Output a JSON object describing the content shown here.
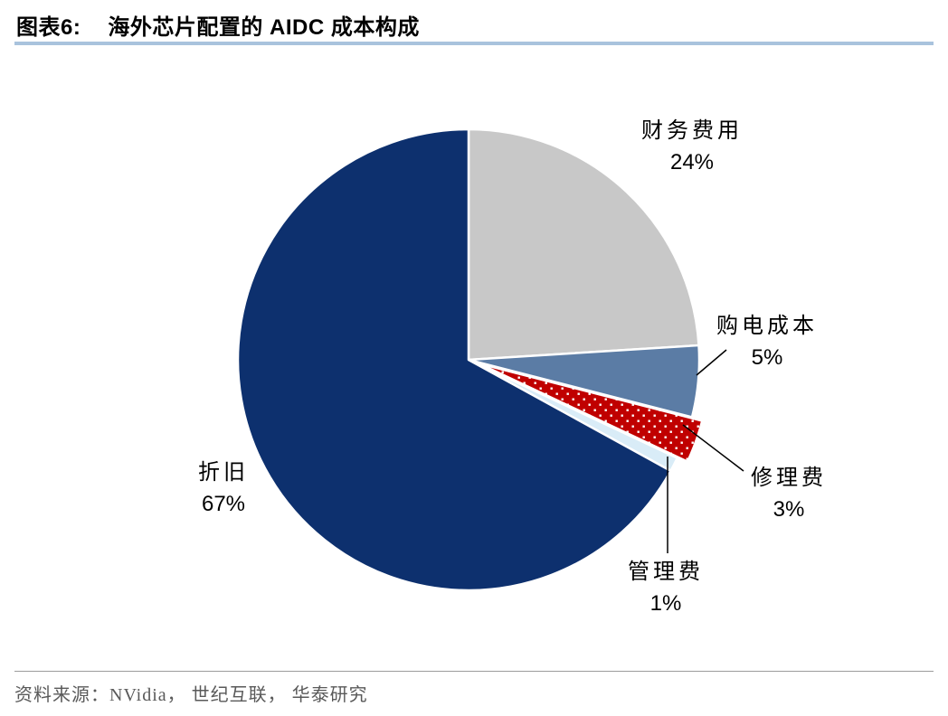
{
  "header": {
    "title_prefix": "图表6:",
    "title": "海外芯片配置的 AIDC 成本构成"
  },
  "footer": {
    "source": "资料来源：NVidia， 世纪互联， 华泰研究"
  },
  "chart_data": {
    "type": "pie",
    "title": "海外芯片配置的 AIDC 成本构成",
    "start_angle_deg": 0,
    "direction": "clockwise",
    "legend_position": "outside-callouts",
    "segments": [
      {
        "label": "财务费用",
        "value": 24,
        "pct_text": "24%",
        "color": "#c8c8c8"
      },
      {
        "label": "购电成本",
        "value": 5,
        "pct_text": "5%",
        "color": "#5b7ca5"
      },
      {
        "label": "修理费",
        "value": 3,
        "pct_text": "3%",
        "color": "#c00000",
        "pattern": "white-dots",
        "exploded": true
      },
      {
        "label": "管理费",
        "value": 1,
        "pct_text": "1%",
        "color": "#d9ecf7"
      },
      {
        "label": "折旧",
        "value": 67,
        "pct_text": "67%",
        "color": "#0d306e"
      }
    ],
    "colors": {
      "navy": "#0d306e",
      "gray": "#c8c8c8",
      "steel_blue": "#5b7ca5",
      "red": "#c00000",
      "pale_blue": "#d9ecf7",
      "title_rule": "#a9c3dd",
      "source_text": "#595959"
    }
  }
}
